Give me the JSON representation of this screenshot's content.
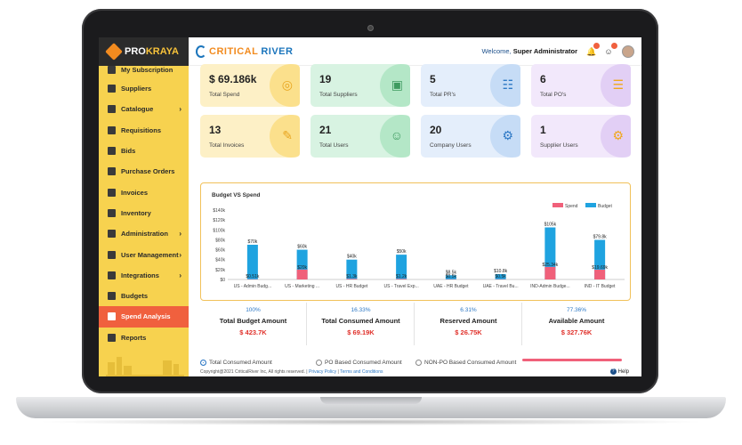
{
  "sidebar": {
    "brand_a": "PRO",
    "brand_b": "KRAYA",
    "items": [
      {
        "label": "My Subscription",
        "icon": "subscription-icon"
      },
      {
        "label": "Suppliers",
        "icon": "truck-icon"
      },
      {
        "label": "Catalogue",
        "icon": "catalogue-icon",
        "chevron": "›"
      },
      {
        "label": "Requisitions",
        "icon": "requisition-icon"
      },
      {
        "label": "Bids",
        "icon": "bids-icon"
      },
      {
        "label": "Purchase Orders",
        "icon": "cart-icon"
      },
      {
        "label": "Invoices",
        "icon": "invoice-icon"
      },
      {
        "label": "Inventory",
        "icon": "inventory-icon"
      },
      {
        "label": "Administration",
        "icon": "admin-icon",
        "chevron": "›"
      },
      {
        "label": "User Management",
        "icon": "users-icon",
        "chevron": "›"
      },
      {
        "label": "Integrations",
        "icon": "integrations-icon",
        "chevron": "›"
      },
      {
        "label": "Budgets",
        "icon": "budget-icon"
      },
      {
        "label": "Spend Analysis",
        "icon": "spend-icon",
        "active": true
      },
      {
        "label": "Reports",
        "icon": "reports-icon"
      }
    ]
  },
  "header": {
    "logo_a": "CRITICAL",
    "logo_b": "RIVER",
    "welcome_prefix": "Welcome, ",
    "welcome_user": "Super Administrator"
  },
  "cards": [
    {
      "value": "$ 69.186k",
      "label": "Total Spend",
      "icon": "money-icon",
      "theme": "y"
    },
    {
      "value": "19",
      "label": "Total Suppliers",
      "icon": "truck-icon",
      "theme": "g"
    },
    {
      "value": "5",
      "label": "Total PR's",
      "icon": "document-icon",
      "theme": "b"
    },
    {
      "value": "6",
      "label": "Total PO's",
      "icon": "cart-icon",
      "theme": "p"
    },
    {
      "value": "13",
      "label": "Total Invoices",
      "icon": "invoice-icon",
      "theme": "y"
    },
    {
      "value": "21",
      "label": "Total Users",
      "icon": "users-icon",
      "theme": "g"
    },
    {
      "value": "20",
      "label": "Company Users",
      "icon": "user-gear-icon",
      "theme": "b"
    },
    {
      "value": "1",
      "label": "Supplier Users",
      "icon": "user-gear-icon",
      "theme": "p"
    }
  ],
  "chart_data": {
    "type": "bar",
    "title": "Budget VS Spend",
    "categories": [
      "US - Admin Budg...",
      "US - Marketing ...",
      "US - HR Budget",
      "US - Travel Exp...",
      "UAE - HR Budget",
      "UAE - Travel Bu...",
      "IND-Admin Budge...",
      "IND - IT Budget"
    ],
    "series": [
      {
        "name": "Spend",
        "color": "#f0607a",
        "values": [
          0.51,
          20,
          1.3,
          1.2,
          0.5,
          0.5,
          25.34,
          19.69
        ],
        "labels": [
          "$0.51k",
          "$20k",
          "$1.3k",
          "$1.2k",
          "$0.5k",
          "$0.5k",
          "$25.34k",
          "$19.69k"
        ]
      },
      {
        "name": "Budget",
        "color": "#1fa3e0",
        "values": [
          70,
          60,
          40,
          50,
          8.5,
          10.8,
          105,
          79.8
        ],
        "labels": [
          "$70k",
          "$60k",
          "$40k",
          "$50k",
          "$8.5k",
          "$10.8k",
          "$105k",
          "$79.8k"
        ]
      }
    ],
    "y_ticks": [
      "$140k",
      "$120k",
      "$100k",
      "$80k",
      "$60k",
      "$40k",
      "$20k",
      "$0"
    ],
    "ylim": [
      0,
      140
    ],
    "legend": "top-right",
    "grid": false
  },
  "summary": [
    {
      "pct": "100%",
      "title": "Total Budget Amount",
      "value": "$ 423.7K"
    },
    {
      "pct": "16.33%",
      "title": "Total Consumed Amount",
      "value": "$ 69.19K"
    },
    {
      "pct": "6.31%",
      "title": "Reserved Amount",
      "value": "$ 26.75K"
    },
    {
      "pct": "77.36%",
      "title": "Available Amount",
      "value": "$ 327.76K"
    }
  ],
  "radios": [
    "Total Consumed Amount",
    "PO Based Consumed Amount",
    "NON-PO Based Consumed Amount"
  ],
  "footer": {
    "copyright": "Copyright@2021 CriticalRiver Inc, All rights reserved. |",
    "privacy": "Privacy Policy",
    "sep": "|",
    "terms": "Terms and Conditions",
    "help": "Help"
  }
}
